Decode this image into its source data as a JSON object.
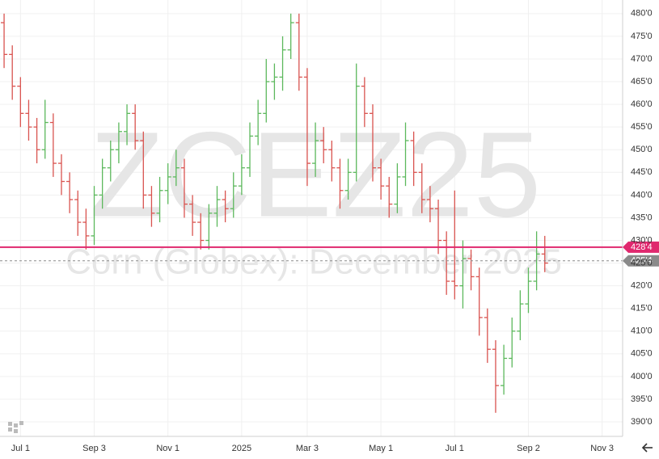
{
  "chart_data": {
    "type": "ohlc",
    "symbol": "ZCEZ25",
    "title": "Corn (Globex): December 2025",
    "categories": [
      null,
      null,
      "Jul 1",
      null,
      null,
      null,
      null,
      null,
      null,
      null,
      null,
      "Sep 3",
      null,
      null,
      null,
      null,
      null,
      null,
      null,
      null,
      "Nov 1",
      null,
      null,
      null,
      null,
      null,
      null,
      null,
      null,
      "2025",
      null,
      null,
      null,
      null,
      null,
      null,
      null,
      "Mar 3",
      null,
      null,
      null,
      null,
      null,
      null,
      null,
      null,
      "May 1",
      null,
      null,
      null,
      null,
      null,
      null,
      null,
      null,
      "Jul 1",
      null,
      null,
      null,
      null,
      null,
      null,
      null,
      null,
      "Sep 2",
      null,
      null,
      null,
      null,
      null,
      null,
      null,
      null,
      "Nov 3",
      null,
      null
    ],
    "open": [
      478,
      471,
      464,
      458,
      455,
      450,
      456,
      447,
      443,
      439,
      434,
      431,
      440,
      446,
      450,
      454,
      458,
      452,
      440,
      436,
      441,
      444,
      446,
      438,
      434,
      430,
      436,
      439,
      437,
      442,
      446,
      453,
      458,
      465,
      466,
      472,
      478,
      466,
      447,
      452,
      450,
      446,
      441,
      445,
      464,
      458,
      446,
      442,
      438,
      444,
      452,
      445,
      439,
      437,
      430,
      421,
      420,
      426,
      422,
      413,
      406,
      398,
      404,
      410,
      416,
      421,
      427,
      null,
      null,
      null,
      null,
      null,
      null,
      null,
      null,
      null
    ],
    "high": [
      480,
      473,
      466,
      461,
      457,
      461,
      458,
      449,
      445,
      441,
      437,
      442,
      448,
      452,
      456,
      460,
      460,
      454,
      442,
      444,
      447,
      450,
      448,
      440,
      436,
      438,
      442,
      441,
      445,
      449,
      456,
      461,
      470,
      469,
      475,
      480,
      480,
      468,
      456,
      455,
      452,
      448,
      448,
      469,
      466,
      460,
      448,
      444,
      447,
      456,
      454,
      447,
      442,
      439,
      432,
      441,
      430,
      428,
      424,
      415,
      408,
      407,
      413,
      419,
      424,
      432,
      431,
      null,
      null,
      null,
      null,
      null,
      null,
      null,
      null,
      null
    ],
    "low": [
      468,
      461,
      455,
      452,
      447,
      448,
      444,
      440,
      436,
      431,
      428,
      429,
      437,
      443,
      447,
      451,
      450,
      437,
      433,
      434,
      438,
      442,
      435,
      431,
      428,
      428,
      433,
      434,
      435,
      440,
      444,
      451,
      456,
      461,
      463,
      470,
      463,
      442,
      444,
      447,
      443,
      437,
      439,
      443,
      455,
      443,
      439,
      435,
      436,
      442,
      442,
      436,
      434,
      427,
      418,
      417,
      415,
      419,
      409,
      403,
      392,
      396,
      402,
      408,
      414,
      419,
      423,
      null,
      null,
      null,
      null,
      null,
      null,
      null,
      null,
      null
    ],
    "close": [
      471,
      464,
      458,
      455,
      450,
      456,
      447,
      443,
      439,
      434,
      431,
      440,
      446,
      450,
      454,
      458,
      452,
      440,
      436,
      441,
      444,
      446,
      438,
      434,
      430,
      436,
      439,
      437,
      442,
      446,
      453,
      458,
      465,
      466,
      472,
      478,
      466,
      447,
      452,
      450,
      446,
      441,
      445,
      464,
      458,
      446,
      442,
      438,
      444,
      452,
      445,
      439,
      437,
      430,
      421,
      420,
      426,
      422,
      413,
      406,
      398,
      404,
      410,
      416,
      421,
      427,
      425,
      null,
      null,
      null,
      null,
      null,
      null,
      null,
      null,
      null
    ],
    "up_color": "#5cb85c",
    "down_color": "#d9534f",
    "ylim": [
      386.8,
      483.0
    ],
    "yticks": [
      {
        "value": 390,
        "label": "390'0"
      },
      {
        "value": 395,
        "label": "395'0"
      },
      {
        "value": 400,
        "label": "400'0"
      },
      {
        "value": 405,
        "label": "405'0"
      },
      {
        "value": 410,
        "label": "410'0"
      },
      {
        "value": 415,
        "label": "415'0"
      },
      {
        "value": 420,
        "label": "420'0"
      },
      {
        "value": 425,
        "label": "425'0"
      },
      {
        "value": 430,
        "label": "430'0"
      },
      {
        "value": 435,
        "label": "435'0"
      },
      {
        "value": 440,
        "label": "440'0"
      },
      {
        "value": 445,
        "label": "445'0"
      },
      {
        "value": 450,
        "label": "450'0"
      },
      {
        "value": 455,
        "label": "455'0"
      },
      {
        "value": 460,
        "label": "460'0"
      },
      {
        "value": 465,
        "label": "465'0"
      },
      {
        "value": 470,
        "label": "470'0"
      },
      {
        "value": 475,
        "label": "475'0"
      },
      {
        "value": 480,
        "label": "480'0"
      }
    ],
    "grid": true,
    "price_lines": [
      {
        "value": 428.5,
        "label": "428'4",
        "color": "#e0286e",
        "style": "solid"
      },
      {
        "value": 425.5,
        "label": "425'4",
        "color": "#8a8a8a",
        "style": "dashed"
      }
    ]
  }
}
